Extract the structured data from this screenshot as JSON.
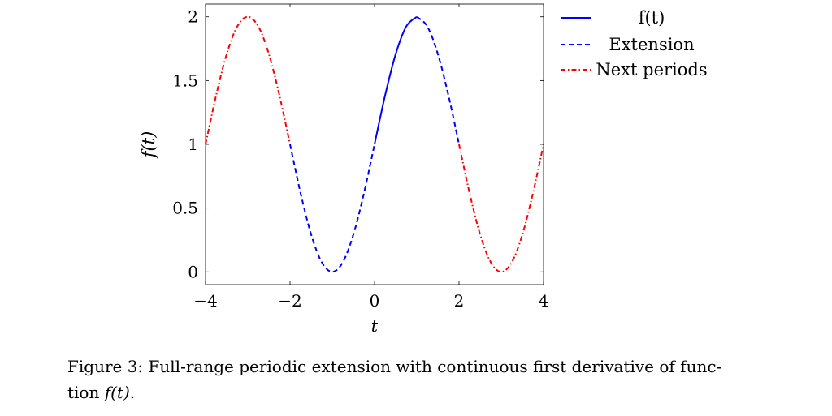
{
  "chart_data": {
    "type": "line",
    "xlabel": "t",
    "ylabel": "f(t)",
    "xlim": [
      -4,
      4
    ],
    "ylim": [
      -0.1,
      2.1
    ],
    "xticks": [
      -4,
      -2,
      0,
      2,
      4
    ],
    "xtick_labels": [
      "−4",
      "−2",
      "0",
      "2",
      "4"
    ],
    "yticks": [
      0,
      0.5,
      1,
      1.5,
      2
    ],
    "ytick_labels": [
      "0",
      "0.5",
      "1",
      "1.5",
      "2"
    ],
    "grid": false,
    "legend_placement": "outside-right",
    "series": [
      {
        "name": "f(t)",
        "color": "#0000ff",
        "style": "solid",
        "segments": [
          {
            "x": [
              0,
              0.25,
              0.5,
              0.75,
              1
            ],
            "y": [
              1,
              1.383,
              1.707,
              1.924,
              2
            ]
          }
        ]
      },
      {
        "name": "Extension",
        "color": "#0000ff",
        "style": "dashed",
        "segments": [
          {
            "x": [
              -2,
              -1.75,
              -1.5,
              -1.25,
              -1,
              -0.75,
              -0.5,
              -0.25,
              0
            ],
            "y": [
              1,
              0.617,
              0.293,
              0.076,
              0,
              0.076,
              0.293,
              0.617,
              1
            ]
          },
          {
            "x": [
              1,
              1.25,
              1.5,
              1.75,
              2
            ],
            "y": [
              2,
              1.924,
              1.707,
              1.383,
              1
            ]
          }
        ]
      },
      {
        "name": "Next periods",
        "color": "#ff0000",
        "style": "dash-dot",
        "segments": [
          {
            "x": [
              -4,
              -3.75,
              -3.5,
              -3.25,
              -3,
              -2.75,
              -2.5,
              -2.25,
              -2
            ],
            "y": [
              1,
              1.383,
              1.707,
              1.924,
              2,
              1.924,
              1.707,
              1.383,
              1
            ]
          },
          {
            "x": [
              2,
              2.25,
              2.5,
              2.75,
              3,
              3.25,
              3.5,
              3.75,
              4
            ],
            "y": [
              1,
              0.617,
              0.293,
              0.076,
              0,
              0.076,
              0.293,
              0.617,
              1
            ]
          }
        ]
      }
    ]
  },
  "caption": {
    "line1": "Figure 3: Full-range periodic extension with continuous first derivative of func-",
    "line2_prefix": "tion ",
    "line2_math": "f(t)",
    "line2_suffix": "."
  }
}
